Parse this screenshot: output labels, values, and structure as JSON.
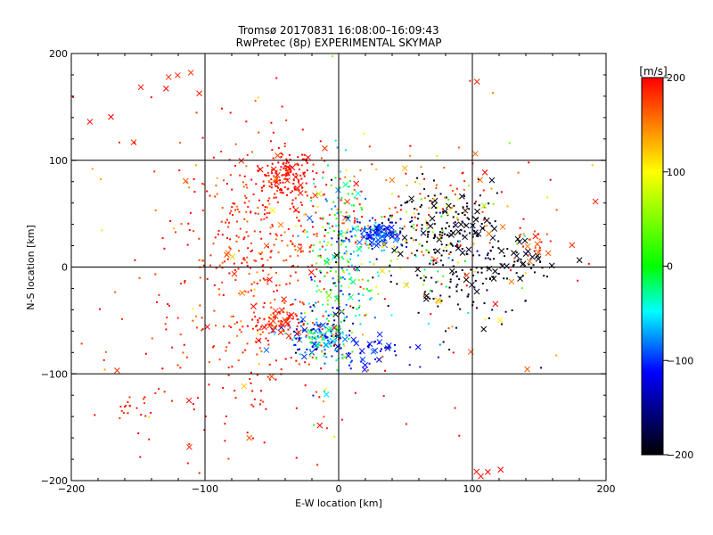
{
  "chart_data": {
    "type": "scatter",
    "title": "Tromsø 20170831 16:08:00–16:09:43",
    "subtitle": "RwPretec (8p) EXPERIMENTAL SKYMAP",
    "xlabel": "E-W location [km]",
    "ylabel": "N-S location [km]",
    "xlim": [
      -200,
      200
    ],
    "ylim": [
      -200,
      200
    ],
    "xticks": [
      "−200",
      "−100",
      "0",
      "100",
      "200"
    ],
    "yticks": [
      "−200",
      "−100",
      "0",
      "100",
      "200"
    ],
    "grid": true,
    "colorbar": {
      "label": "[m/s]",
      "range": [
        -200,
        200
      ],
      "ticks": [
        "200",
        "100",
        "0",
        "−100",
        "−200"
      ],
      "colors": [
        "#ff0000",
        "#ffff00",
        "#00ff00",
        "#00ffff",
        "#0000ff",
        "#000000"
      ]
    },
    "clusters": [
      {
        "cx": -38,
        "cy": 88,
        "sx": 10,
        "sy": 10,
        "n": 130,
        "v": 195,
        "sv": 10,
        "cross": 0.12
      },
      {
        "cx": -60,
        "cy": 30,
        "sx": 35,
        "sy": 45,
        "n": 360,
        "v": 185,
        "sv": 20,
        "cross": 0.04
      },
      {
        "cx": 30,
        "cy": 30,
        "sx": 10,
        "sy": 7,
        "n": 110,
        "v": -110,
        "sv": 25,
        "cross": 0.2
      },
      {
        "cx": 82,
        "cy": 40,
        "sx": 20,
        "sy": 18,
        "n": 150,
        "v": -195,
        "sv": 10,
        "cross": 0.25
      },
      {
        "cx": 95,
        "cy": -5,
        "sx": 25,
        "sy": 20,
        "n": 90,
        "v": -195,
        "sv": 8,
        "cross": 0.15
      },
      {
        "cx": -15,
        "cy": -65,
        "sx": 13,
        "sy": 11,
        "n": 170,
        "v": -90,
        "sv": 60,
        "cross": 0.15
      },
      {
        "cx": -45,
        "cy": -50,
        "sx": 12,
        "sy": 10,
        "n": 80,
        "v": 190,
        "sv": 15,
        "cross": 0.15
      },
      {
        "cx": 0,
        "cy": 0,
        "sx": 12,
        "sy": 45,
        "n": 230,
        "v": -30,
        "sv": 75,
        "cross": 0.06
      },
      {
        "cx": 25,
        "cy": -80,
        "sx": 15,
        "sy": 8,
        "n": 40,
        "v": -120,
        "sv": 15,
        "cross": 0.4
      },
      {
        "cx": 140,
        "cy": 5,
        "sx": 8,
        "sy": 8,
        "n": 25,
        "v": -195,
        "sv": 8,
        "cross": 0.5
      },
      {
        "cx": 150,
        "cy": 20,
        "sx": 12,
        "sy": 10,
        "n": 25,
        "v": 180,
        "sv": 20,
        "cross": 0.4
      },
      {
        "cx": 60,
        "cy": 60,
        "sx": 40,
        "sy": 25,
        "n": 80,
        "v": 170,
        "sv": 30,
        "cross": 0.12
      },
      {
        "cx": -70,
        "cy": -95,
        "sx": 45,
        "sy": 45,
        "n": 140,
        "v": 190,
        "sv": 15,
        "cross": 0.05
      },
      {
        "cx": -155,
        "cy": -125,
        "sx": 12,
        "sy": 12,
        "n": 20,
        "v": 190,
        "sv": 10,
        "cross": 0.0
      },
      {
        "cx": 50,
        "cy": 20,
        "sx": 35,
        "sy": 35,
        "n": 130,
        "v": 30,
        "sv": 120,
        "cross": 0.08
      },
      {
        "cx": 0,
        "cy": 0,
        "sx": 110,
        "sy": 100,
        "n": 110,
        "v": 150,
        "sv": 70,
        "cross": 0.12
      },
      {
        "cx": 100,
        "cy": -20,
        "sx": 35,
        "sy": 30,
        "n": 40,
        "v": -180,
        "sv": 20,
        "cross": 0.1
      },
      {
        "cx": -150,
        "cy": 150,
        "sx": 30,
        "sy": 25,
        "n": 14,
        "v": 190,
        "sv": 20,
        "cross": 0.7
      },
      {
        "cx": 110,
        "cy": -190,
        "sx": 5,
        "sy": 5,
        "n": 4,
        "v": 200,
        "sv": 5,
        "cross": 0.8
      }
    ]
  }
}
